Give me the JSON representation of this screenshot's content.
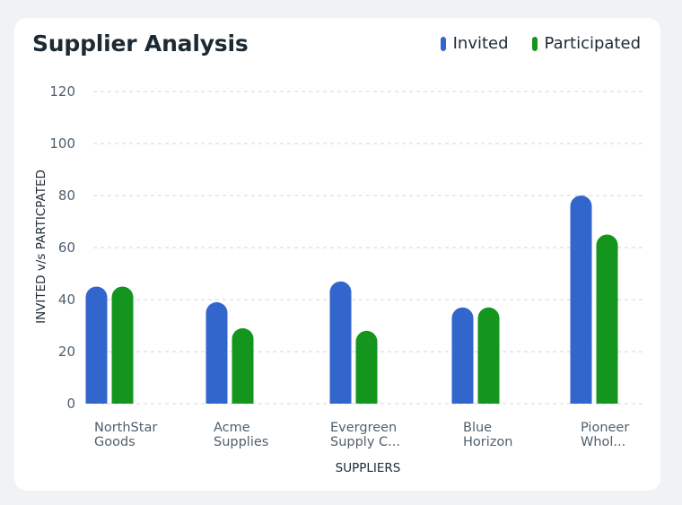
{
  "card": {
    "title": "Supplier Analysis"
  },
  "colors": {
    "invited": "#3366cc",
    "participated": "#14961e",
    "grid": "#cfd6dc",
    "text": "#4e5f6e"
  },
  "chart_data": {
    "type": "bar",
    "title": "Supplier Analysis",
    "xlabel": "SUPPLIERS",
    "ylabel": "INVITED v/s PARTICPATED",
    "ylim": [
      0,
      120
    ],
    "yticks": [
      "0",
      "20",
      "40",
      "60",
      "80",
      "100",
      "120"
    ],
    "grid": true,
    "legend_position": "top-right",
    "categories": [
      [
        "NorthStar",
        "Goods"
      ],
      [
        "Acme",
        "Supplies"
      ],
      [
        "Evergreen",
        "Supply C..."
      ],
      [
        "Blue",
        "Horizon"
      ],
      [
        "Pioneer",
        "Whol..."
      ]
    ],
    "series": [
      {
        "name": "Invited",
        "color": "#3366cc",
        "values": [
          45,
          39,
          47,
          37,
          80
        ]
      },
      {
        "name": "Participated",
        "color": "#14961e",
        "values": [
          45,
          29,
          28,
          37,
          65
        ]
      }
    ]
  }
}
